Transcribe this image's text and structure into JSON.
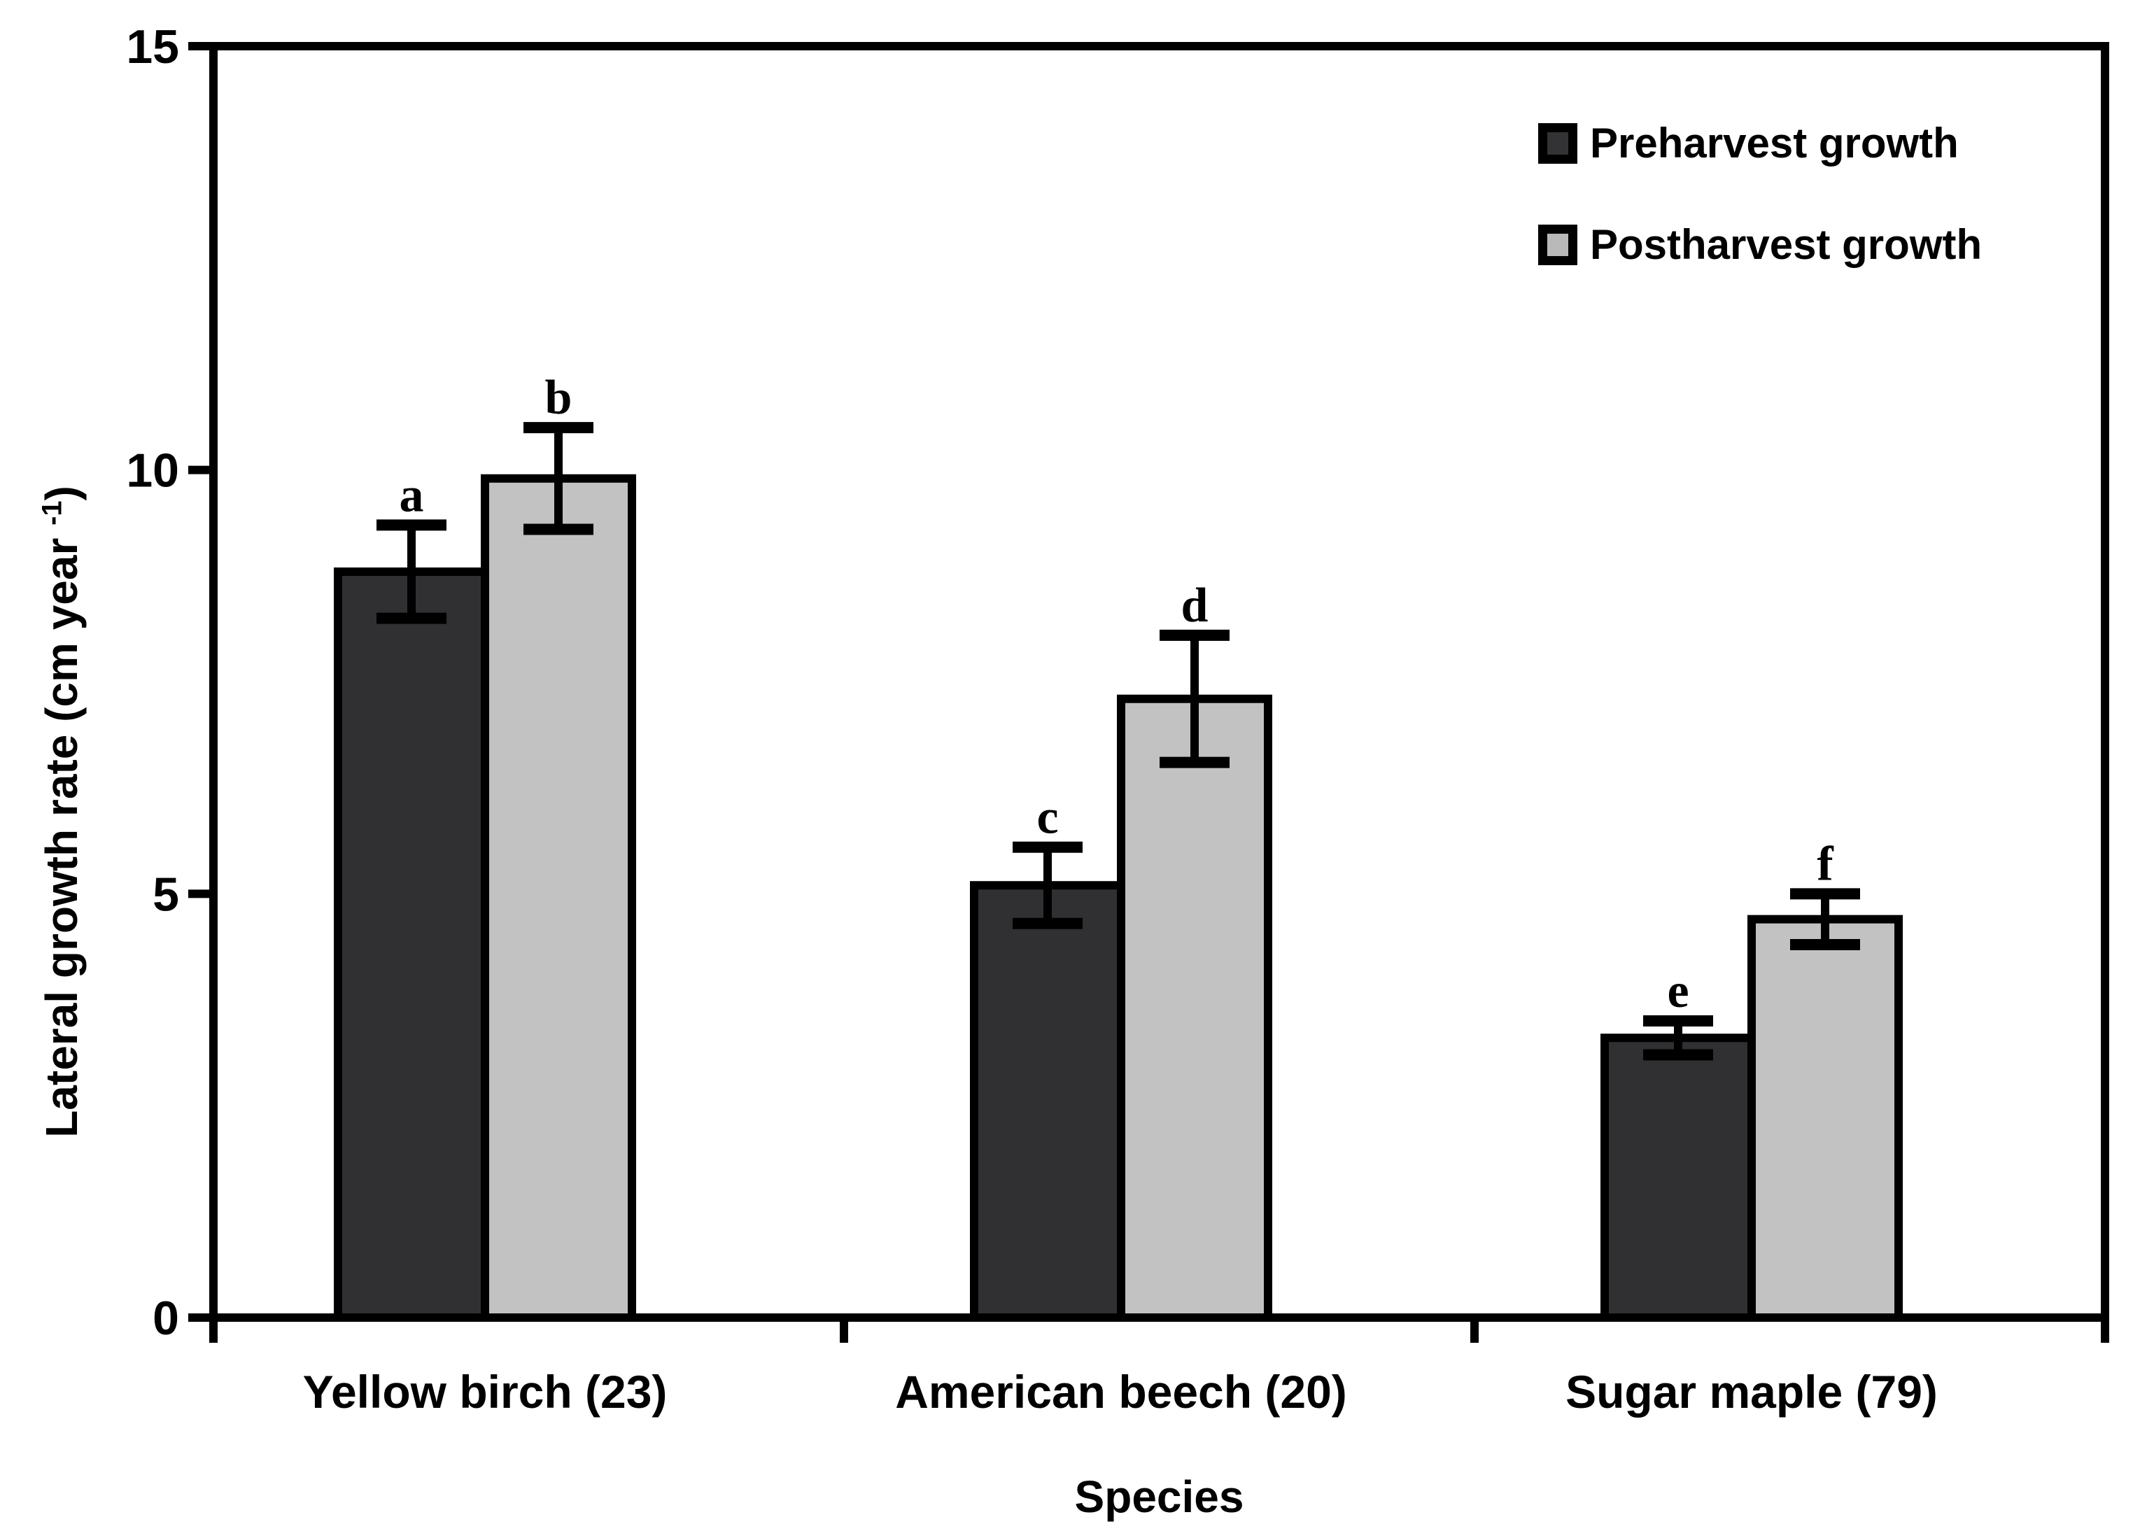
{
  "figure": {
    "background": "#ffffff",
    "text_color": "#000000"
  },
  "chart_data": {
    "type": "bar",
    "title": "",
    "categories": [
      "Yellow birch (23)",
      "American beech (20)",
      "Sugar maple (79)"
    ],
    "series": [
      {
        "name": "Preharvest growth",
        "values": [
          8.8,
          5.1,
          3.3
        ],
        "errors": [
          0.55,
          0.45,
          0.2
        ],
        "significance_letters": [
          "a",
          "c",
          "e"
        ],
        "color": "#303032"
      },
      {
        "name": "Postharvest growth",
        "values": [
          9.9,
          7.3,
          4.7
        ],
        "errors": [
          0.6,
          0.75,
          0.3
        ],
        "significance_letters": [
          "b",
          "d",
          "f"
        ],
        "color": "#c2c2c2"
      }
    ],
    "xlabel": "Species",
    "ylabel": "Lateral growth rate (cm year -1)",
    "ylim": [
      0,
      15
    ],
    "yticks": [
      0,
      5,
      10,
      15
    ],
    "ytick_labels": [
      "0",
      "5",
      "10",
      "15"
    ],
    "grid": false,
    "legend_position": "top-right-inside",
    "bar_edge_color": "#000000",
    "error_bar_color": "#000000"
  },
  "axes": {
    "y_title_pre": "Lateral growth rate (cm year ",
    "y_title_sup": "-1",
    "y_title_post": ")",
    "x_title": "Species"
  },
  "legend": {
    "items": [
      {
        "label": "Preharvest growth",
        "swatch": "#333335"
      },
      {
        "label": "Postharvest growth",
        "swatch": "#b9b9b9"
      }
    ]
  }
}
